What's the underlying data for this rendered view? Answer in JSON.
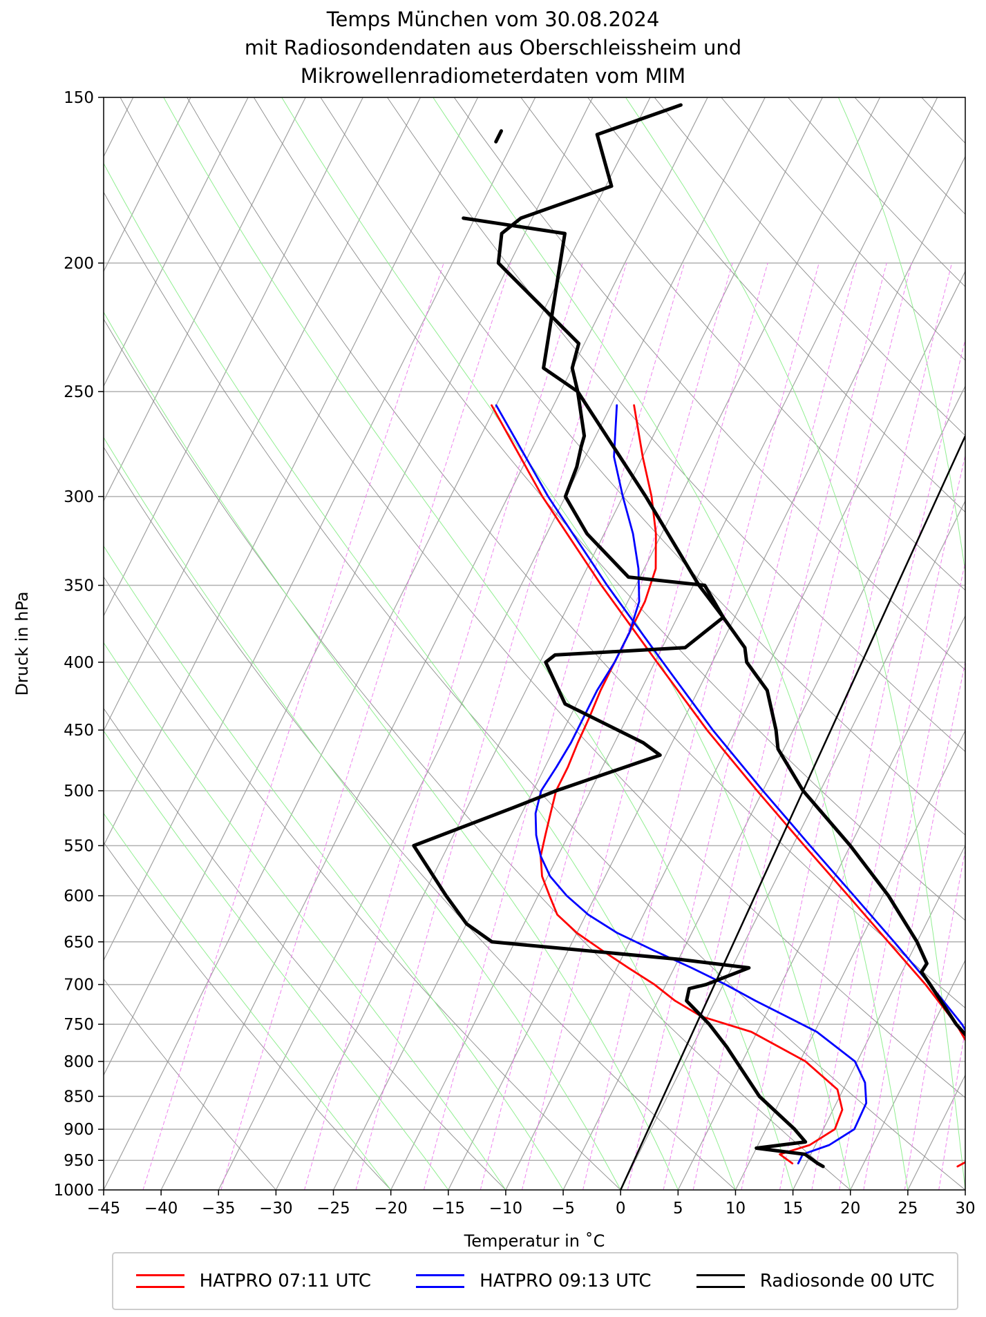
{
  "chart_data": {
    "type": "line",
    "title": [
      "Temps München vom 30.08.2024",
      "mit Radiosondendaten aus Oberschleissheim und",
      "Mikrowellenradiometerdaten vom MIM"
    ],
    "xlabel": "Temperatur in $^\\circ$C",
    "xlabel_text": "Temperatur in ˚C",
    "ylabel": "Druck in hPa",
    "xlim": [
      -45,
      30
    ],
    "ylim": [
      1000,
      150
    ],
    "yscale": "log",
    "skew": true,
    "x_ticks": [
      "−45",
      "−40",
      "−35",
      "−30",
      "−25",
      "−20",
      "−15",
      "−10",
      "−5",
      "0",
      "5",
      "10",
      "15",
      "20",
      "25",
      "30"
    ],
    "x_tick_values": [
      -45,
      -40,
      -35,
      -30,
      -25,
      -20,
      -15,
      -10,
      -5,
      0,
      5,
      10,
      15,
      20,
      25,
      30
    ],
    "y_ticks": [
      1000,
      950,
      900,
      850,
      800,
      750,
      700,
      650,
      600,
      550,
      500,
      450,
      400,
      350,
      300,
      250,
      200,
      150
    ],
    "grid": true,
    "legend_placement": "bottom",
    "colors": {
      "red": "#ff0000",
      "blue": "#0000ff",
      "black": "#000000",
      "dry_adiabat": "#808080",
      "moist_adiabat": "#90ee90",
      "mixing_ratio": "#ee82ee"
    },
    "series": [
      {
        "name": "HATPRO 07:11 UTC",
        "color": "#ff0000",
        "points": [
          [
            955,
            13.8
          ],
          [
            940,
            12.3
          ],
          [
            925,
            14.5
          ],
          [
            900,
            16.0
          ],
          [
            870,
            15.8
          ],
          [
            840,
            14.5
          ],
          [
            800,
            10.5
          ],
          [
            760,
            4.5
          ],
          [
            740,
            -0.5
          ],
          [
            720,
            -3.5
          ],
          [
            700,
            -6.0
          ],
          [
            680,
            -9.0
          ],
          [
            660,
            -12.0
          ],
          [
            640,
            -15.0
          ],
          [
            620,
            -17.5
          ],
          [
            600,
            -19.0
          ],
          [
            580,
            -20.5
          ],
          [
            560,
            -21.5
          ],
          [
            540,
            -22.0
          ],
          [
            520,
            -22.5
          ],
          [
            500,
            -23.0
          ],
          [
            480,
            -23.0
          ],
          [
            460,
            -23.2
          ],
          [
            440,
            -23.3
          ],
          [
            420,
            -23.5
          ],
          [
            400,
            -23.5
          ],
          [
            380,
            -23.5
          ],
          [
            360,
            -23.5
          ],
          [
            340,
            -24.0
          ],
          [
            320,
            -25.5
          ],
          [
            300,
            -27.5
          ],
          [
            280,
            -30.0
          ],
          [
            256,
            -33.0
          ]
        ]
      },
      {
        "name": "HATPRO 07:11 UTC T",
        "color": "#ff0000",
        "points": [
          [
            960,
            28.3
          ],
          [
            950,
            29.0
          ],
          [
            935,
            29.7
          ],
          [
            920,
            30.2
          ],
          [
            900,
            30.0
          ],
          [
            850,
            28.5
          ],
          [
            800,
            25.5
          ],
          [
            750,
            22.0
          ],
          [
            700,
            17.6
          ],
          [
            650,
            12.5
          ],
          [
            600,
            7.0
          ],
          [
            550,
            1.0
          ],
          [
            500,
            -5.5
          ],
          [
            450,
            -12.5
          ],
          [
            400,
            -19.8
          ],
          [
            350,
            -28.0
          ],
          [
            300,
            -37.0
          ],
          [
            256,
            -45.4
          ]
        ]
      },
      {
        "name": "HATPRO 09:13 UTC",
        "color": "#0000ff",
        "points": [
          [
            955,
            14.3
          ],
          [
            940,
            14.3
          ],
          [
            925,
            16.2
          ],
          [
            900,
            17.7
          ],
          [
            860,
            17.6
          ],
          [
            830,
            16.6
          ],
          [
            800,
            14.8
          ],
          [
            760,
            10.2
          ],
          [
            720,
            3.5
          ],
          [
            700,
            0.2
          ],
          [
            680,
            -3.5
          ],
          [
            660,
            -7.5
          ],
          [
            640,
            -11.5
          ],
          [
            620,
            -14.8
          ],
          [
            600,
            -17.5
          ],
          [
            580,
            -19.8
          ],
          [
            560,
            -21.5
          ],
          [
            540,
            -22.8
          ],
          [
            520,
            -23.8
          ],
          [
            500,
            -24.3
          ],
          [
            480,
            -24.0
          ],
          [
            460,
            -23.8
          ],
          [
            440,
            -23.8
          ],
          [
            420,
            -23.8
          ],
          [
            400,
            -23.5
          ],
          [
            380,
            -23.5
          ],
          [
            360,
            -24.0
          ],
          [
            340,
            -25.5
          ],
          [
            320,
            -27.5
          ],
          [
            300,
            -30.0
          ],
          [
            280,
            -32.5
          ],
          [
            256,
            -34.5
          ]
        ]
      },
      {
        "name": "HATPRO 09:13 UTC T",
        "color": "#0000ff",
        "points": [
          [
            960,
            30.5
          ],
          [
            950,
            31.0
          ],
          [
            935,
            31.0
          ],
          [
            920,
            31.0
          ],
          [
            900,
            30.7
          ],
          [
            850,
            29.0
          ],
          [
            800,
            26.0
          ],
          [
            750,
            22.5
          ],
          [
            700,
            18.0
          ],
          [
            650,
            13.0
          ],
          [
            600,
            7.5
          ],
          [
            550,
            1.5
          ],
          [
            500,
            -5.0
          ],
          [
            450,
            -12.0
          ],
          [
            400,
            -19.3
          ],
          [
            350,
            -27.5
          ],
          [
            300,
            -36.5
          ],
          [
            256,
            -45.0
          ]
        ]
      },
      {
        "name": "Radiosonde 00 UTC",
        "color": "#000000",
        "points": [
          [
            960,
            16.6
          ],
          [
            955,
            16.0
          ],
          [
            940,
            14.5
          ],
          [
            930,
            10.0
          ],
          [
            920,
            14.0
          ],
          [
            900,
            12.5
          ],
          [
            850,
            8.0
          ],
          [
            780,
            3.0
          ],
          [
            750,
            0.5
          ],
          [
            720,
            -2.5
          ],
          [
            705,
            -2.8
          ],
          [
            700,
            -1.5
          ],
          [
            680,
            1.5
          ],
          [
            670,
            -5.0
          ],
          [
            650,
            -22.0
          ],
          [
            630,
            -25.0
          ],
          [
            600,
            -28.0
          ],
          [
            550,
            -33.0
          ],
          [
            515,
            -26.0
          ],
          [
            500,
            -23.0
          ],
          [
            470,
            -15.5
          ],
          [
            460,
            -17.5
          ],
          [
            430,
            -26.0
          ],
          [
            400,
            -29.5
          ],
          [
            395,
            -29.0
          ],
          [
            390,
            -18.0
          ],
          [
            370,
            -16.0
          ],
          [
            350,
            -19.0
          ],
          [
            345,
            -26.0
          ],
          [
            320,
            -31.5
          ],
          [
            300,
            -35.0
          ],
          [
            285,
            -35.3
          ],
          [
            275,
            -35.8
          ],
          [
            270,
            -36.0
          ],
          [
            250,
            -38.5
          ],
          [
            240,
            -42.5
          ],
          [
            190,
            -46.5
          ],
          [
            185,
            -56.0
          ]
        ]
      },
      {
        "name": "Radiosonde 00 UTC T",
        "color": "#000000",
        "points": [
          [
            962,
            32.6
          ],
          [
            958,
            32.0
          ],
          [
            950,
            36.0
          ],
          [
            945,
            37.5
          ],
          [
            935,
            37.8
          ],
          [
            920,
            37.5
          ],
          [
            900,
            35.0
          ],
          [
            850,
            30.5
          ],
          [
            800,
            26.5
          ],
          [
            750,
            22.0
          ],
          [
            700,
            18.0
          ],
          [
            685,
            16.7
          ],
          [
            675,
            16.8
          ],
          [
            650,
            15.0
          ],
          [
            600,
            10.5
          ],
          [
            550,
            5.0
          ],
          [
            500,
            -1.5
          ],
          [
            465,
            -5.5
          ],
          [
            450,
            -6.5
          ],
          [
            420,
            -9.0
          ],
          [
            400,
            -12.0
          ],
          [
            390,
            -12.8
          ],
          [
            370,
            -16.0
          ],
          [
            350,
            -19.5
          ],
          [
            345,
            -20.3
          ],
          [
            300,
            -28.0
          ],
          [
            250,
            -38.5
          ],
          [
            240,
            -40.0
          ],
          [
            230,
            -40.5
          ],
          [
            200,
            -51.0
          ],
          [
            190,
            -52.0
          ],
          [
            185,
            -51.0
          ],
          [
            175,
            -44.5
          ],
          [
            160,
            -48.0
          ],
          [
            152,
            -42.0
          ]
        ]
      },
      {
        "name": "Radiosonde 00 UTC fragment",
        "color": "#000000",
        "points": [
          [
            162,
            -56.5
          ],
          [
            159,
            -56.5
          ]
        ]
      }
    ]
  },
  "legend": {
    "items": [
      {
        "label": "HATPRO 07:11 UTC",
        "color": "#ff0000"
      },
      {
        "label": "HATPRO 09:13 UTC",
        "color": "#0000ff"
      },
      {
        "label": "Radiosonde 00 UTC",
        "color": "#000000"
      }
    ]
  }
}
